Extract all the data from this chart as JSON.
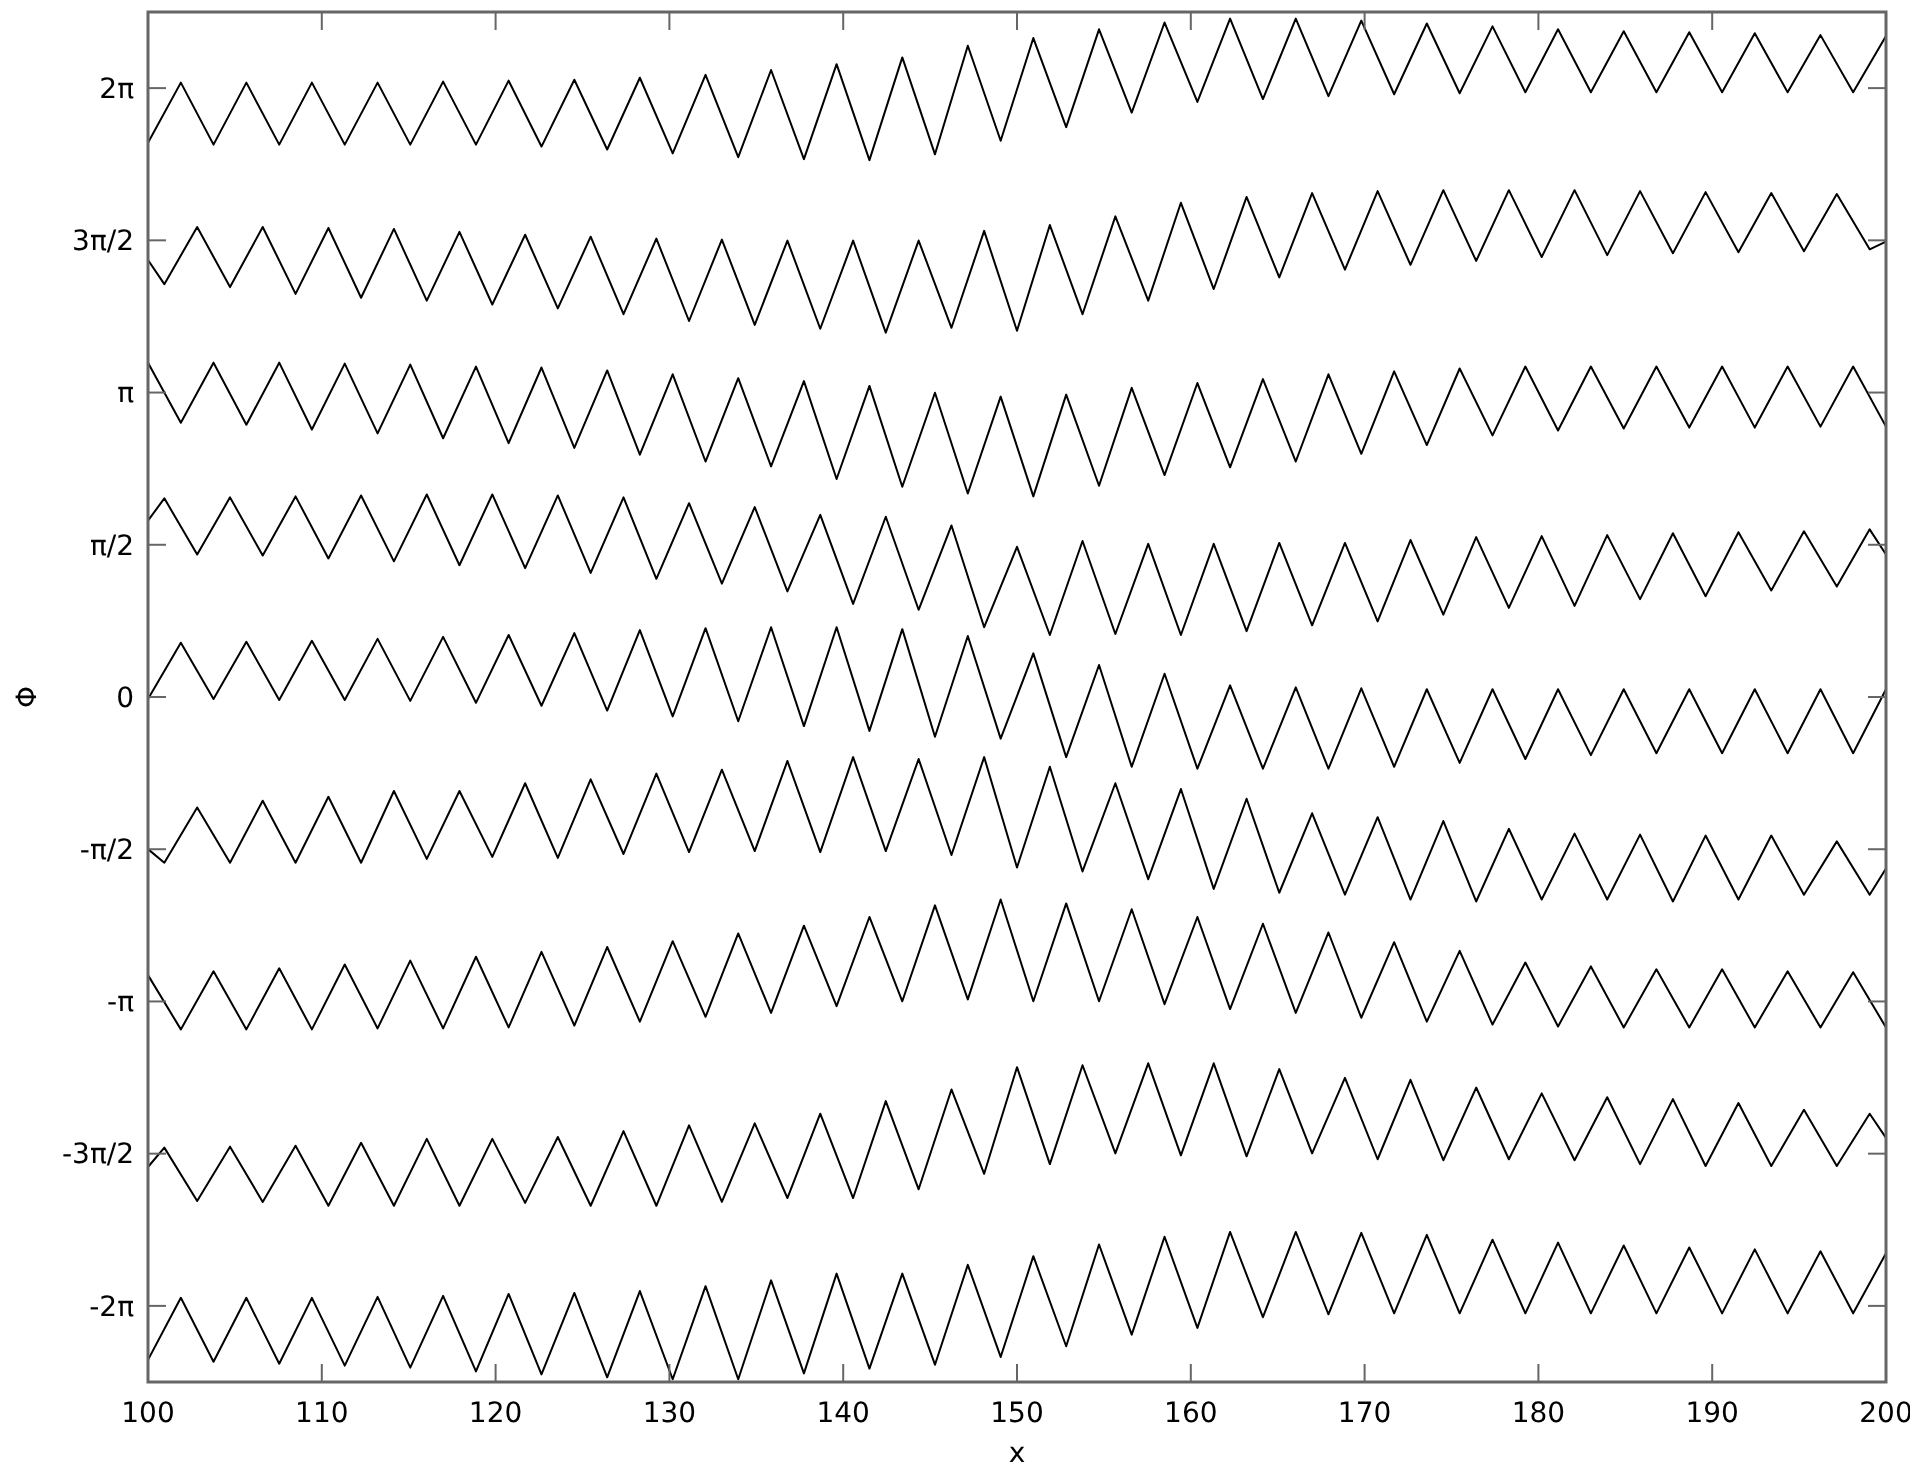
{
  "chart_data": {
    "type": "line",
    "xlabel": "x",
    "ylabel": "Φ",
    "xlim": [
      100,
      200
    ],
    "ylim": [
      -7.0686,
      7.0686
    ],
    "xticks": [
      100,
      110,
      120,
      130,
      140,
      150,
      160,
      170,
      180,
      190,
      200
    ],
    "yticks": [
      {
        "value": -6.2832,
        "label": "-2π"
      },
      {
        "value": -4.7124,
        "label": "-3π/2"
      },
      {
        "value": -3.1416,
        "label": "-π"
      },
      {
        "value": -1.5708,
        "label": "-π/2"
      },
      {
        "value": 0,
        "label": "0"
      },
      {
        "value": 1.5708,
        "label": "π/2"
      },
      {
        "value": 3.1416,
        "label": "π"
      },
      {
        "value": 4.7124,
        "label": "3π/2"
      },
      {
        "value": 6.2832,
        "label": "2π"
      }
    ],
    "grid": false,
    "x": [
      100,
      101.89,
      103.77,
      105.66,
      107.55,
      109.43,
      111.32,
      113.21,
      115.09,
      116.98,
      118.87,
      120.75,
      122.64,
      124.53,
      126.42,
      128.3,
      130.19,
      132.08,
      133.96,
      135.85,
      137.74,
      139.62,
      141.51,
      143.4,
      145.28,
      147.17,
      149.06,
      150.94,
      152.83,
      154.72,
      156.6,
      158.49,
      160.38,
      162.26,
      164.15,
      166.04,
      167.92,
      169.81,
      171.7,
      173.58,
      175.47,
      177.36,
      179.25,
      181.13,
      183.02,
      184.91,
      186.79,
      188.68,
      190.57,
      192.45,
      194.34,
      196.23,
      198.11,
      200
    ],
    "series": [
      {
        "color": "#000000",
        "values": [
          5.72,
          6.34,
          5.7,
          6.34,
          5.7,
          6.34,
          5.7,
          6.34,
          5.7,
          6.35,
          5.7,
          6.36,
          5.68,
          6.37,
          5.65,
          6.39,
          5.61,
          6.42,
          5.57,
          6.47,
          5.55,
          6.53,
          5.54,
          6.6,
          5.6,
          6.72,
          5.74,
          6.8,
          5.88,
          6.89,
          6.03,
          6.96,
          6.14,
          7.0,
          6.17,
          7.0,
          6.2,
          6.98,
          6.22,
          6.95,
          6.23,
          6.92,
          6.24,
          6.89,
          6.24,
          6.87,
          6.24,
          6.86,
          6.24,
          6.85,
          6.24,
          6.83,
          6.24,
          6.82
        ]
      },
      {
        "color": "#000000",
        "x": [
          100,
          100.94,
          102.83,
          104.72,
          106.6,
          108.49,
          110.38,
          112.26,
          114.15,
          116.04,
          117.92,
          119.81,
          121.7,
          123.58,
          125.47,
          127.36,
          129.25,
          131.13,
          133.02,
          134.91,
          136.79,
          138.68,
          140.57,
          142.45,
          144.34,
          146.23,
          148.11,
          150,
          151.89,
          153.77,
          155.66,
          157.55,
          159.43,
          161.32,
          163.21,
          165.09,
          166.98,
          168.87,
          170.75,
          172.64,
          174.53,
          176.42,
          178.3,
          180.19,
          182.08,
          183.96,
          185.85,
          187.74,
          189.62,
          191.51,
          193.4,
          195.28,
          197.17,
          199.06,
          200
        ],
        "values": [
          4.51,
          4.26,
          4.85,
          4.23,
          4.85,
          4.16,
          4.84,
          4.12,
          4.83,
          4.09,
          4.8,
          4.05,
          4.77,
          4.01,
          4.75,
          3.95,
          4.73,
          3.88,
          4.72,
          3.84,
          4.71,
          3.8,
          4.71,
          3.76,
          4.71,
          3.81,
          4.81,
          3.78,
          4.87,
          3.95,
          4.96,
          4.09,
          5.1,
          4.21,
          5.16,
          4.33,
          5.2,
          4.41,
          5.22,
          4.46,
          5.23,
          4.5,
          5.23,
          4.54,
          5.23,
          4.56,
          5.22,
          4.58,
          5.21,
          4.59,
          5.2,
          4.6,
          5.19,
          4.62,
          4.7
        ]
      },
      {
        "color": "#000000",
        "values": [
          3.45,
          2.83,
          3.45,
          2.81,
          3.45,
          2.76,
          3.44,
          2.72,
          3.43,
          2.67,
          3.41,
          2.62,
          3.4,
          2.57,
          3.37,
          2.5,
          3.33,
          2.43,
          3.29,
          2.38,
          3.26,
          2.25,
          3.21,
          2.17,
          3.14,
          2.1,
          3.1,
          2.07,
          3.12,
          2.18,
          3.19,
          2.29,
          3.24,
          2.37,
          3.28,
          2.43,
          3.33,
          2.51,
          3.36,
          2.6,
          3.39,
          2.7,
          3.41,
          2.75,
          3.41,
          2.77,
          3.41,
          2.78,
          3.41,
          2.78,
          3.41,
          2.79,
          3.41,
          2.79
        ]
      },
      {
        "color": "#000000",
        "x": [
          100,
          100.94,
          102.83,
          104.72,
          106.6,
          108.49,
          110.38,
          112.26,
          114.15,
          116.04,
          117.92,
          119.81,
          121.7,
          123.58,
          125.47,
          127.36,
          129.25,
          131.13,
          133.02,
          134.91,
          136.79,
          138.68,
          140.57,
          142.45,
          144.34,
          146.23,
          148.11,
          150,
          151.89,
          153.77,
          155.66,
          157.55,
          159.43,
          161.32,
          163.21,
          165.09,
          166.98,
          168.87,
          170.75,
          172.64,
          174.53,
          176.42,
          178.3,
          180.19,
          182.08,
          183.96,
          185.85,
          187.74,
          189.62,
          191.51,
          193.4,
          195.28,
          197.17,
          199.06,
          200
        ],
        "values": [
          1.82,
          2.05,
          1.47,
          2.06,
          1.46,
          2.07,
          1.43,
          2.08,
          1.4,
          2.09,
          1.36,
          2.09,
          1.33,
          2.08,
          1.28,
          2.06,
          1.22,
          2.0,
          1.17,
          1.96,
          1.09,
          1.88,
          0.96,
          1.86,
          0.9,
          1.77,
          0.72,
          1.55,
          0.64,
          1.61,
          0.65,
          1.58,
          0.64,
          1.58,
          0.68,
          1.59,
          0.74,
          1.59,
          0.78,
          1.62,
          0.85,
          1.65,
          0.92,
          1.66,
          0.94,
          1.67,
          1.01,
          1.69,
          1.04,
          1.7,
          1.1,
          1.71,
          1.14,
          1.73,
          1.47
        ]
      },
      {
        "color": "#000000",
        "values": [
          -0.02,
          0.56,
          -0.02,
          0.57,
          -0.03,
          0.58,
          -0.03,
          0.6,
          -0.04,
          0.62,
          -0.06,
          0.64,
          -0.09,
          0.66,
          -0.14,
          0.69,
          -0.2,
          0.71,
          -0.25,
          0.72,
          -0.3,
          0.72,
          -0.35,
          0.7,
          -0.41,
          0.63,
          -0.43,
          0.45,
          -0.62,
          0.33,
          -0.72,
          0.24,
          -0.74,
          0.12,
          -0.74,
          0.1,
          -0.74,
          0.09,
          -0.72,
          0.08,
          -0.68,
          0.08,
          -0.64,
          0.08,
          -0.6,
          0.08,
          -0.58,
          0.08,
          -0.58,
          0.08,
          -0.58,
          0.08,
          -0.58,
          0.08
        ]
      },
      {
        "color": "#000000",
        "x": [
          100,
          100.94,
          102.83,
          104.72,
          106.6,
          108.49,
          110.38,
          112.26,
          114.15,
          116.04,
          117.92,
          119.81,
          121.7,
          123.58,
          125.47,
          127.36,
          129.25,
          131.13,
          133.02,
          134.91,
          136.79,
          138.68,
          140.57,
          142.45,
          144.34,
          146.23,
          148.11,
          150,
          151.89,
          153.77,
          155.66,
          157.55,
          159.43,
          161.32,
          163.21,
          165.09,
          166.98,
          168.87,
          170.75,
          172.64,
          174.53,
          176.42,
          178.3,
          180.19,
          182.08,
          183.96,
          185.85,
          187.74,
          189.62,
          191.51,
          193.4,
          195.28,
          197.17,
          199.06,
          200
        ],
        "values": [
          -1.57,
          -1.71,
          -1.14,
          -1.71,
          -1.07,
          -1.71,
          -1.03,
          -1.71,
          -0.97,
          -1.67,
          -0.97,
          -1.65,
          -0.89,
          -1.66,
          -0.85,
          -1.62,
          -0.79,
          -1.6,
          -0.75,
          -1.59,
          -0.66,
          -1.6,
          -0.62,
          -1.59,
          -0.64,
          -1.63,
          -0.62,
          -1.76,
          -0.72,
          -1.8,
          -0.89,
          -1.88,
          -0.95,
          -1.98,
          -1.05,
          -2.02,
          -1.2,
          -2.04,
          -1.24,
          -2.09,
          -1.28,
          -2.11,
          -1.36,
          -2.09,
          -1.41,
          -2.09,
          -1.42,
          -2.11,
          -1.43,
          -2.09,
          -1.43,
          -2.04,
          -1.49,
          -2.04,
          -1.77
        ]
      },
      {
        "color": "#000000",
        "values": [
          -2.87,
          -3.43,
          -2.83,
          -3.43,
          -2.8,
          -3.43,
          -2.76,
          -3.42,
          -2.72,
          -3.42,
          -2.68,
          -3.41,
          -2.63,
          -3.39,
          -2.58,
          -3.35,
          -2.52,
          -3.3,
          -2.44,
          -3.26,
          -2.36,
          -3.19,
          -2.27,
          -3.14,
          -2.15,
          -3.12,
          -2.09,
          -3.14,
          -2.13,
          -3.14,
          -2.19,
          -3.17,
          -2.27,
          -3.22,
          -2.34,
          -3.26,
          -2.43,
          -3.31,
          -2.53,
          -3.35,
          -2.62,
          -3.38,
          -2.74,
          -3.4,
          -2.78,
          -3.41,
          -2.81,
          -3.41,
          -2.81,
          -3.41,
          -2.83,
          -3.41,
          -2.84,
          -3.41
        ]
      },
      {
        "color": "#000000",
        "x": [
          100,
          100.94,
          102.83,
          104.72,
          106.6,
          108.49,
          110.38,
          112.26,
          114.15,
          116.04,
          117.92,
          119.81,
          121.7,
          123.58,
          125.47,
          127.36,
          129.25,
          131.13,
          133.02,
          134.91,
          136.79,
          138.68,
          140.57,
          142.45,
          144.34,
          146.23,
          148.11,
          150,
          151.89,
          153.77,
          155.66,
          157.55,
          159.43,
          161.32,
          163.21,
          165.09,
          166.98,
          168.87,
          170.75,
          172.64,
          174.53,
          176.42,
          178.3,
          180.19,
          182.08,
          183.96,
          185.85,
          187.74,
          189.62,
          191.51,
          193.4,
          195.28,
          197.17,
          199.06,
          200
        ],
        "values": [
          -4.85,
          -4.65,
          -5.2,
          -4.64,
          -5.21,
          -4.63,
          -5.25,
          -4.6,
          -5.25,
          -4.56,
          -5.25,
          -4.56,
          -5.22,
          -4.54,
          -5.25,
          -4.48,
          -5.25,
          -4.42,
          -5.21,
          -4.4,
          -5.17,
          -4.3,
          -5.17,
          -4.17,
          -5.08,
          -4.05,
          -4.92,
          -3.82,
          -4.82,
          -3.8,
          -4.71,
          -3.78,
          -4.73,
          -3.78,
          -4.74,
          -3.84,
          -4.71,
          -3.93,
          -4.77,
          -3.95,
          -4.78,
          -4.03,
          -4.77,
          -4.09,
          -4.78,
          -4.13,
          -4.82,
          -4.15,
          -4.84,
          -4.19,
          -4.84,
          -4.26,
          -4.84,
          -4.3,
          -4.55
        ]
      },
      {
        "color": "#000000",
        "values": [
          -6.84,
          -6.2,
          -6.86,
          -6.2,
          -6.88,
          -6.2,
          -6.9,
          -6.19,
          -6.92,
          -6.18,
          -6.96,
          -6.16,
          -6.99,
          -6.15,
          -7.02,
          -6.13,
          -7.04,
          -6.08,
          -7.04,
          -6.02,
          -6.98,
          -5.95,
          -6.93,
          -5.95,
          -6.89,
          -5.86,
          -6.81,
          -5.77,
          -6.7,
          -5.65,
          -6.58,
          -5.57,
          -6.51,
          -5.52,
          -6.4,
          -5.52,
          -6.37,
          -5.53,
          -6.36,
          -5.55,
          -6.36,
          -5.6,
          -6.36,
          -5.63,
          -6.36,
          -5.66,
          -6.36,
          -5.68,
          -6.36,
          -5.7,
          -6.36,
          -5.72,
          -6.36,
          -5.74
        ]
      }
    ]
  }
}
